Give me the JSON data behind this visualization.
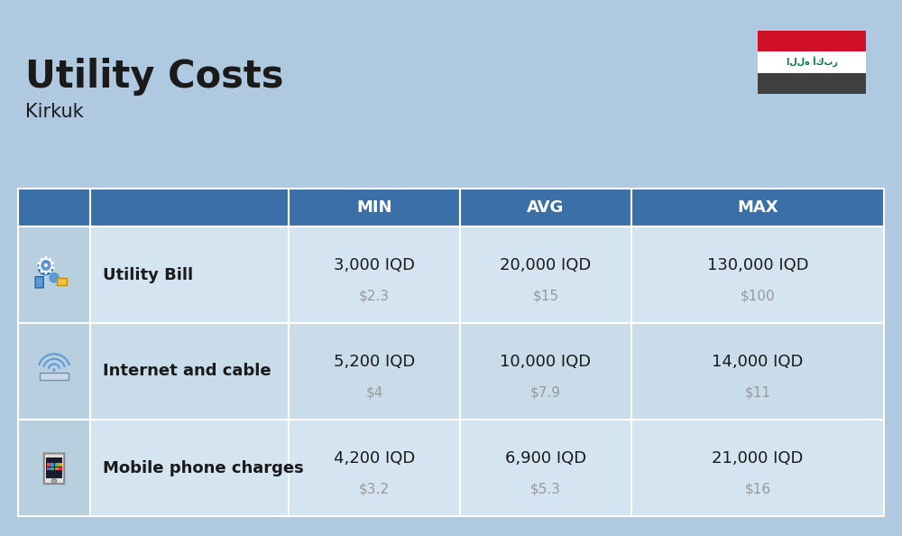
{
  "title": "Utility Costs",
  "subtitle": "Kirkuk",
  "bg_color": "#aec9e0",
  "header_color": "#3a6fa8",
  "header_text_color": "#ffffff",
  "row_color_1": "#d4e4f0",
  "row_color_2": "#c8dcea",
  "icon_col_bg": "#b8cfe0",
  "table_border_color": "#ffffff",
  "columns": [
    "MIN",
    "AVG",
    "MAX"
  ],
  "rows": [
    {
      "label": "Utility Bill",
      "min_iqd": "3,000 IQD",
      "min_usd": "$2.3",
      "avg_iqd": "20,000 IQD",
      "avg_usd": "$15",
      "max_iqd": "130,000 IQD",
      "max_usd": "$100"
    },
    {
      "label": "Internet and cable",
      "min_iqd": "5,200 IQD",
      "min_usd": "$4",
      "avg_iqd": "10,000 IQD",
      "avg_usd": "$7.9",
      "max_iqd": "14,000 IQD",
      "max_usd": "$11"
    },
    {
      "label": "Mobile phone charges",
      "min_iqd": "4,200 IQD",
      "min_usd": "$3.2",
      "avg_iqd": "6,900 IQD",
      "avg_usd": "$5.3",
      "max_iqd": "21,000 IQD",
      "max_usd": "$16"
    }
  ],
  "title_fontsize": 30,
  "subtitle_fontsize": 15,
  "header_fontsize": 13,
  "label_fontsize": 13,
  "value_fontsize": 13,
  "usd_fontsize": 11,
  "usd_color": "#999999",
  "text_color": "#1a1a1a",
  "flag_red": "#ce1126",
  "flag_white": "#ffffff",
  "flag_black": "#404040",
  "flag_green": "#007a3d"
}
